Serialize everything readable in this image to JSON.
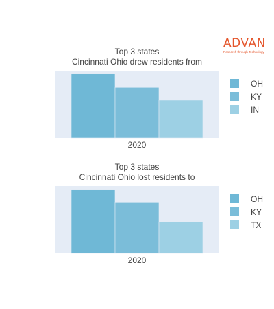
{
  "brand": {
    "name": "ADVAN",
    "tagline": "Research through Technology",
    "color": "#e4552b"
  },
  "chart_data": [
    {
      "type": "bar",
      "title_lines": [
        "Top 3 states",
        "Cincinnati Ohio drew residents from"
      ],
      "categories": [
        "2020"
      ],
      "series": [
        {
          "name": "OH",
          "values": [
            100
          ],
          "color": "#6fb8d6"
        },
        {
          "name": "KY",
          "values": [
            79
          ],
          "color": "#7bbdd9"
        },
        {
          "name": "IN",
          "values": [
            59
          ],
          "color": "#9dd0e4"
        }
      ],
      "y_axis_visible": false,
      "grid": false,
      "legend_placement": "right"
    },
    {
      "type": "bar",
      "title_lines": [
        "Top 3 states",
        "Cincinnati Ohio lost residents to"
      ],
      "categories": [
        "2020"
      ],
      "series": [
        {
          "name": "OH",
          "values": [
            100
          ],
          "color": "#6fb8d6"
        },
        {
          "name": "KY",
          "values": [
            80
          ],
          "color": "#7bbdd9"
        },
        {
          "name": "TX",
          "values": [
            49
          ],
          "color": "#9dd0e4"
        }
      ],
      "y_axis_visible": false,
      "grid": false,
      "legend_placement": "right"
    }
  ],
  "plot_background": "#e5ecf6"
}
